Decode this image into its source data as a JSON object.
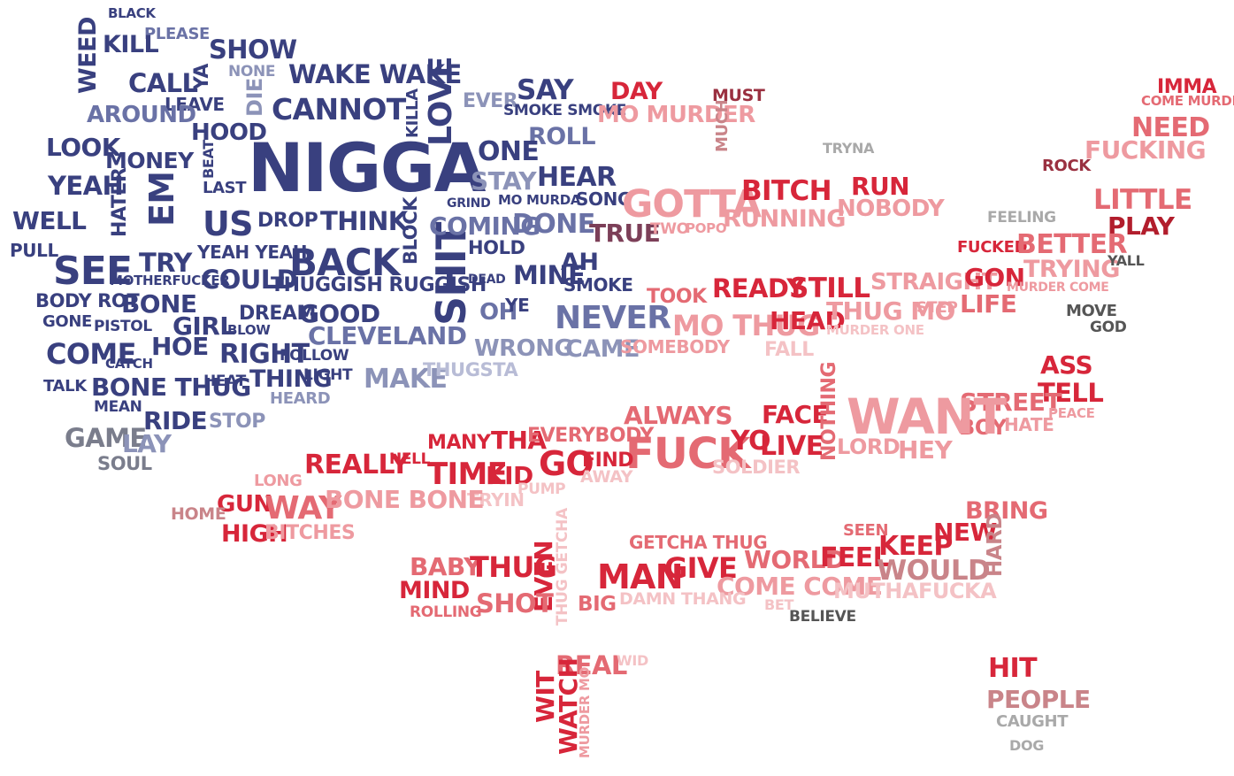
{
  "palette": {
    "navy": "#39407f",
    "blue": "#3b4590",
    "slate": "#6a72a6",
    "steel": "#8c93b8",
    "lavender": "#b8bcd6",
    "grey": "#7a7d8c",
    "darkred": "#b21d2c",
    "red": "#d7263a",
    "coral": "#e46a73",
    "pink": "#ee9aa0",
    "lightpink": "#f4c2c5",
    "rose": "#c98489",
    "maroon": "#9a3040",
    "mauve": "#7c3f58",
    "darkgrey": "#555555",
    "lightgrey": "#a9a9a9"
  },
  "words": [
    {
      "id": "black",
      "text": "BLACK",
      "color": "navy"
    },
    {
      "id": "please",
      "text": "PLEASE",
      "color": "slate"
    },
    {
      "id": "weed",
      "text": "WEED",
      "color": "navy"
    },
    {
      "id": "kill",
      "text": "KILL",
      "color": "navy"
    },
    {
      "id": "show",
      "text": "SHOW",
      "color": "navy"
    },
    {
      "id": "none",
      "text": "NONE",
      "color": "steel"
    },
    {
      "id": "die",
      "text": "DIE",
      "color": "steel"
    },
    {
      "id": "ya",
      "text": "YA",
      "color": "navy"
    },
    {
      "id": "call",
      "text": "CALL",
      "color": "navy"
    },
    {
      "id": "leave",
      "text": "LEAVE",
      "color": "navy"
    },
    {
      "id": "wakewake",
      "text": "WAKE WAKE",
      "color": "navy"
    },
    {
      "id": "cannot",
      "text": "CANNOT",
      "color": "navy"
    },
    {
      "id": "killa",
      "text": "KILLA",
      "color": "navy"
    },
    {
      "id": "love",
      "text": "LOVE",
      "color": "navy"
    },
    {
      "id": "around",
      "text": "AROUND",
      "color": "slate"
    },
    {
      "id": "hood",
      "text": "HOOD",
      "color": "navy"
    },
    {
      "id": "look",
      "text": "LOOK",
      "color": "navy"
    },
    {
      "id": "money",
      "text": "MONEY",
      "color": "navy"
    },
    {
      "id": "beat",
      "text": "BEAT",
      "color": "navy"
    },
    {
      "id": "last",
      "text": "LAST",
      "color": "navy"
    },
    {
      "id": "nigga",
      "text": "NIGGA",
      "color": "navy"
    },
    {
      "id": "yeah",
      "text": "YEAH",
      "color": "navy"
    },
    {
      "id": "hater",
      "text": "HATER",
      "color": "navy"
    },
    {
      "id": "em",
      "text": "EM",
      "color": "navy"
    },
    {
      "id": "us",
      "text": "US",
      "color": "navy"
    },
    {
      "id": "drop",
      "text": "DROP",
      "color": "navy"
    },
    {
      "id": "think",
      "text": "THINK",
      "color": "navy"
    },
    {
      "id": "block",
      "text": "BLOCK",
      "color": "navy"
    },
    {
      "id": "well",
      "text": "WELL",
      "color": "navy"
    },
    {
      "id": "pull",
      "text": "PULL",
      "color": "navy"
    },
    {
      "id": "yeahyeah",
      "text": "YEAH YEAH",
      "color": "navy"
    },
    {
      "id": "back",
      "text": "BACK",
      "color": "navy"
    },
    {
      "id": "see",
      "text": "SEE",
      "color": "navy"
    },
    {
      "id": "try",
      "text": "TRY",
      "color": "navy"
    },
    {
      "id": "motherfucker",
      "text": "MOTHERFUCKER",
      "color": "navy"
    },
    {
      "id": "could",
      "text": "COULD",
      "color": "navy"
    },
    {
      "id": "thuggish",
      "text": "THUGGISH RUGGISH",
      "color": "navy"
    },
    {
      "id": "shit",
      "text": "SHIT",
      "color": "navy"
    },
    {
      "id": "bodyrot",
      "text": "BODY ROT",
      "color": "navy"
    },
    {
      "id": "bone",
      "text": "BONE",
      "color": "navy"
    },
    {
      "id": "gone",
      "text": "GONE",
      "color": "navy"
    },
    {
      "id": "pistol",
      "text": "PISTOL",
      "color": "navy"
    },
    {
      "id": "dream",
      "text": "DREAM",
      "color": "navy"
    },
    {
      "id": "good",
      "text": "GOOD",
      "color": "navy"
    },
    {
      "id": "girl",
      "text": "GIRL",
      "color": "navy"
    },
    {
      "id": "blow",
      "text": "BLOW",
      "color": "navy"
    },
    {
      "id": "cleveland",
      "text": "CLEVELAND",
      "color": "slate"
    },
    {
      "id": "come",
      "text": "COME",
      "color": "navy"
    },
    {
      "id": "hoe",
      "text": "HOE",
      "color": "navy"
    },
    {
      "id": "right",
      "text": "RIGHT",
      "color": "navy"
    },
    {
      "id": "follow",
      "text": "FOLLOW",
      "color": "navy"
    },
    {
      "id": "catch",
      "text": "CATCH",
      "color": "navy"
    },
    {
      "id": "light",
      "text": "LIGHT",
      "color": "navy"
    },
    {
      "id": "thing",
      "text": "THING",
      "color": "navy"
    },
    {
      "id": "make",
      "text": "MAKE",
      "color": "steel"
    },
    {
      "id": "thugsta",
      "text": "THUGSTA",
      "color": "lavender"
    },
    {
      "id": "talk",
      "text": "TALK",
      "color": "navy"
    },
    {
      "id": "bonethug",
      "text": "BONE THUG",
      "color": "navy"
    },
    {
      "id": "heat",
      "text": "HEAT",
      "color": "navy"
    },
    {
      "id": "heard",
      "text": "HEARD",
      "color": "steel"
    },
    {
      "id": "mean",
      "text": "MEAN",
      "color": "navy"
    },
    {
      "id": "ride",
      "text": "RIDE",
      "color": "navy"
    },
    {
      "id": "stop",
      "text": "STOP",
      "color": "steel"
    },
    {
      "id": "game",
      "text": "GAME",
      "color": "grey"
    },
    {
      "id": "lay",
      "text": "LAY",
      "color": "steel"
    },
    {
      "id": "soul",
      "text": "SOUL",
      "color": "grey"
    },
    {
      "id": "ever",
      "text": "EVER",
      "color": "steel"
    },
    {
      "id": "say",
      "text": "SAY",
      "color": "navy"
    },
    {
      "id": "smokesmoke",
      "text": "SMOKE SMOKE",
      "color": "navy"
    },
    {
      "id": "roll",
      "text": "ROLL",
      "color": "slate"
    },
    {
      "id": "one",
      "text": "ONE",
      "color": "navy"
    },
    {
      "id": "stay",
      "text": "STAY",
      "color": "steel"
    },
    {
      "id": "hear",
      "text": "HEAR",
      "color": "navy"
    },
    {
      "id": "grind",
      "text": "GRIND",
      "color": "navy"
    },
    {
      "id": "momurda",
      "text": "MO MURDA",
      "color": "navy"
    },
    {
      "id": "song",
      "text": "SONG",
      "color": "navy"
    },
    {
      "id": "coming",
      "text": "COMING",
      "color": "slate"
    },
    {
      "id": "done",
      "text": "DONE",
      "color": "slate"
    },
    {
      "id": "hold",
      "text": "HOLD",
      "color": "navy"
    },
    {
      "id": "dead",
      "text": "DEAD",
      "color": "navy"
    },
    {
      "id": "mine",
      "text": "MINE",
      "color": "navy"
    },
    {
      "id": "ah",
      "text": "AH",
      "color": "navy"
    },
    {
      "id": "smoke",
      "text": "SMOKE",
      "color": "navy"
    },
    {
      "id": "oh",
      "text": "OH",
      "color": "slate"
    },
    {
      "id": "ye",
      "text": "YE",
      "color": "navy"
    },
    {
      "id": "never",
      "text": "NEVER",
      "color": "slate"
    },
    {
      "id": "wrong",
      "text": "WRONG",
      "color": "steel"
    },
    {
      "id": "came",
      "text": "CAME",
      "color": "steel"
    },
    {
      "id": "day",
      "text": "DAY",
      "color": "red"
    },
    {
      "id": "momurder",
      "text": "MO MURDER",
      "color": "pink"
    },
    {
      "id": "must",
      "text": "MUST",
      "color": "maroon"
    },
    {
      "id": "much",
      "text": "MUCH",
      "color": "rose"
    },
    {
      "id": "tryna",
      "text": "TRYNA",
      "color": "lightgrey"
    },
    {
      "id": "gotta",
      "text": "GOTTA",
      "color": "pink"
    },
    {
      "id": "bitch",
      "text": "BITCH",
      "color": "red"
    },
    {
      "id": "run",
      "text": "RUN",
      "color": "red"
    },
    {
      "id": "true",
      "text": "TRUE",
      "color": "mauve"
    },
    {
      "id": "two",
      "text": "TWO",
      "color": "pink"
    },
    {
      "id": "popo",
      "text": "POPO",
      "color": "pink"
    },
    {
      "id": "running",
      "text": "RUNNING",
      "color": "pink"
    },
    {
      "id": "nobody",
      "text": "NOBODY",
      "color": "pink"
    },
    {
      "id": "took",
      "text": "TOOK",
      "color": "coral"
    },
    {
      "id": "ready",
      "text": "READY",
      "color": "red"
    },
    {
      "id": "still",
      "text": "STILL",
      "color": "red"
    },
    {
      "id": "straight",
      "text": "STRAIGHT",
      "color": "pink"
    },
    {
      "id": "mothug",
      "text": "MO THUG",
      "color": "pink"
    },
    {
      "id": "head",
      "text": "HEAD",
      "color": "red"
    },
    {
      "id": "thugmo",
      "text": "THUG MO",
      "color": "pink"
    },
    {
      "id": "step",
      "text": "STEP",
      "color": "pink"
    },
    {
      "id": "murderone",
      "text": "MURDER ONE",
      "color": "lightpink"
    },
    {
      "id": "somebody",
      "text": "SOMEBODY",
      "color": "pink"
    },
    {
      "id": "fall",
      "text": "FALL",
      "color": "lightpink"
    },
    {
      "id": "imma",
      "text": "IMMA",
      "color": "red"
    },
    {
      "id": "comemurder",
      "text": "COME MURDER",
      "color": "coral"
    },
    {
      "id": "need",
      "text": "NEED",
      "color": "coral"
    },
    {
      "id": "fucking",
      "text": "FUCKING",
      "color": "pink"
    },
    {
      "id": "rock",
      "text": "ROCK",
      "color": "maroon"
    },
    {
      "id": "little",
      "text": "LITTLE",
      "color": "coral"
    },
    {
      "id": "feeling",
      "text": "FEELING",
      "color": "lightgrey"
    },
    {
      "id": "play",
      "text": "PLAY",
      "color": "darkred"
    },
    {
      "id": "fucked",
      "text": "FUCKED",
      "color": "red"
    },
    {
      "id": "better",
      "text": "BETTER",
      "color": "coral"
    },
    {
      "id": "trying",
      "text": "TRYING",
      "color": "pink"
    },
    {
      "id": "yall",
      "text": "YALL",
      "color": "darkgrey"
    },
    {
      "id": "gon",
      "text": "GON",
      "color": "red"
    },
    {
      "id": "murdercome",
      "text": "MURDER COME",
      "color": "pink"
    },
    {
      "id": "life",
      "text": "LIFE",
      "color": "coral"
    },
    {
      "id": "move",
      "text": "MOVE",
      "color": "darkgrey"
    },
    {
      "id": "god",
      "text": "GOD",
      "color": "darkgrey"
    },
    {
      "id": "ass",
      "text": "ASS",
      "color": "red"
    },
    {
      "id": "tell",
      "text": "TELL",
      "color": "red"
    },
    {
      "id": "street",
      "text": "STREET",
      "color": "coral"
    },
    {
      "id": "peace",
      "text": "PEACE",
      "color": "pink"
    },
    {
      "id": "boy",
      "text": "BOY",
      "color": "coral"
    },
    {
      "id": "hate",
      "text": "HATE",
      "color": "pink"
    },
    {
      "id": "always",
      "text": "ALWAYS",
      "color": "coral"
    },
    {
      "id": "face",
      "text": "FACE",
      "color": "red"
    },
    {
      "id": "nothing",
      "text": "NOTHING",
      "color": "coral"
    },
    {
      "id": "want",
      "text": "WANT",
      "color": "pink"
    },
    {
      "id": "lord",
      "text": "LORD",
      "color": "pink"
    },
    {
      "id": "hey",
      "text": "HEY",
      "color": "pink"
    },
    {
      "id": "many",
      "text": "MANY",
      "color": "red"
    },
    {
      "id": "tha",
      "text": "THA",
      "color": "red"
    },
    {
      "id": "everybody",
      "text": "EVERYBODY",
      "color": "coral"
    },
    {
      "id": "fuck",
      "text": "FUCK",
      "color": "coral"
    },
    {
      "id": "yo",
      "text": "YO",
      "color": "red"
    },
    {
      "id": "live",
      "text": "LIVE",
      "color": "red"
    },
    {
      "id": "soldier",
      "text": "SOLDIER",
      "color": "lightpink"
    },
    {
      "id": "really",
      "text": "REALLY",
      "color": "red"
    },
    {
      "id": "hell",
      "text": "HELL",
      "color": "red"
    },
    {
      "id": "time",
      "text": "TIME",
      "color": "red"
    },
    {
      "id": "kid",
      "text": "KID",
      "color": "red"
    },
    {
      "id": "go",
      "text": "GO",
      "color": "red"
    },
    {
      "id": "find",
      "text": "FIND",
      "color": "red"
    },
    {
      "id": "away",
      "text": "AWAY",
      "color": "lightpink"
    },
    {
      "id": "long",
      "text": "LONG",
      "color": "pink"
    },
    {
      "id": "tryin",
      "text": "TRYIN",
      "color": "lightpink"
    },
    {
      "id": "pump",
      "text": "PUMP",
      "color": "lightpink"
    },
    {
      "id": "gun",
      "text": "GUN",
      "color": "red"
    },
    {
      "id": "way",
      "text": "WAY",
      "color": "coral"
    },
    {
      "id": "bonebone",
      "text": "BONE BONE",
      "color": "pink"
    },
    {
      "id": "home",
      "text": "HOME",
      "color": "rose"
    },
    {
      "id": "high",
      "text": "HIGH",
      "color": "red"
    },
    {
      "id": "bitches",
      "text": "BITCHES",
      "color": "pink"
    },
    {
      "id": "bring",
      "text": "BRING",
      "color": "coral"
    },
    {
      "id": "seen",
      "text": "SEEN",
      "color": "coral"
    },
    {
      "id": "new",
      "text": "NEW",
      "color": "red"
    },
    {
      "id": "hard",
      "text": "HARD",
      "color": "rose"
    },
    {
      "id": "getchathug",
      "text": "GETCHA THUG",
      "color": "coral"
    },
    {
      "id": "keep",
      "text": "KEEP",
      "color": "red"
    },
    {
      "id": "baby",
      "text": "BABY",
      "color": "coral"
    },
    {
      "id": "thug",
      "text": "THUG",
      "color": "red"
    },
    {
      "id": "thuggetcha",
      "text": "THUG GETCHA",
      "color": "lightpink"
    },
    {
      "id": "man",
      "text": "MAN",
      "color": "red"
    },
    {
      "id": "give",
      "text": "GIVE",
      "color": "red"
    },
    {
      "id": "world",
      "text": "WORLD",
      "color": "coral"
    },
    {
      "id": "feel",
      "text": "FEEL",
      "color": "red"
    },
    {
      "id": "would",
      "text": "WOULD",
      "color": "rose"
    },
    {
      "id": "mind",
      "text": "MIND",
      "color": "red"
    },
    {
      "id": "even",
      "text": "EVEN",
      "color": "red"
    },
    {
      "id": "comecome",
      "text": "COME COME",
      "color": "pink"
    },
    {
      "id": "muthafucka",
      "text": "MUTHAFUCKA",
      "color": "lightpink"
    },
    {
      "id": "rolling",
      "text": "ROLLING",
      "color": "coral"
    },
    {
      "id": "shot",
      "text": "SHOT",
      "color": "coral"
    },
    {
      "id": "big",
      "text": "BIG",
      "color": "coral"
    },
    {
      "id": "damnthang",
      "text": "DAMN THANG",
      "color": "lightpink"
    },
    {
      "id": "bet",
      "text": "BET",
      "color": "lightpink"
    },
    {
      "id": "believe",
      "text": "BELIEVE",
      "color": "darkgrey"
    },
    {
      "id": "real",
      "text": "REAL",
      "color": "coral"
    },
    {
      "id": "wid",
      "text": "WID",
      "color": "lightpink"
    },
    {
      "id": "wit",
      "text": "WIT",
      "color": "red"
    },
    {
      "id": "watch",
      "text": "WATCH",
      "color": "red"
    },
    {
      "id": "murdermo",
      "text": "MURDER MO",
      "color": "pink"
    },
    {
      "id": "hit",
      "text": "HIT",
      "color": "red"
    },
    {
      "id": "people",
      "text": "PEOPLE",
      "color": "rose"
    },
    {
      "id": "caught",
      "text": "CAUGHT",
      "color": "lightgrey"
    },
    {
      "id": "dog",
      "text": "DOG",
      "color": "lightgrey"
    }
  ]
}
